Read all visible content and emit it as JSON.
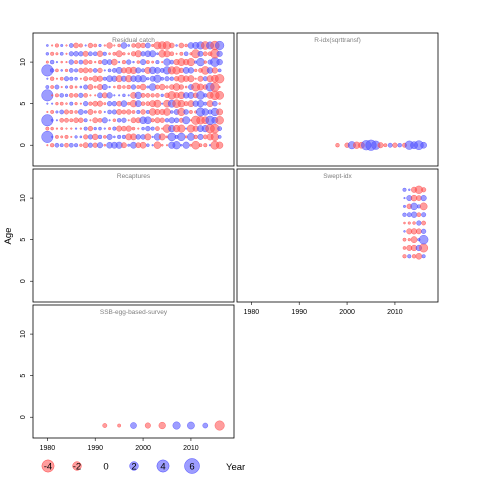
{
  "chart_data": {
    "type": "scatter",
    "xlabel": "Year",
    "ylabel": "Age",
    "x_ticks": [
      1980,
      1990,
      2000,
      2010
    ],
    "y_ticks": [
      0,
      5,
      10
    ],
    "xlim": [
      1977,
      2019
    ],
    "ylim": [
      -2.5,
      13.5
    ],
    "colors": {
      "positive": "#4d4dff",
      "negative": "#ff4d4d"
    },
    "legend": {
      "position": "bottom",
      "values": [
        -4,
        -2,
        0,
        2,
        4,
        6
      ]
    },
    "panels": [
      {
        "name": "Residual catch",
        "x_range": [
          1980,
          2016
        ],
        "ages": [
          0,
          1,
          2,
          3,
          4,
          5,
          6,
          7,
          8,
          9,
          10,
          11,
          12
        ],
        "dense": true
      },
      {
        "name": "R-idx(sqrttransf)",
        "points": [
          [
            1998,
            0,
            -0.4
          ],
          [
            2000,
            0,
            -0.6
          ],
          [
            2001,
            0,
            1.5
          ],
          [
            2002,
            0,
            -1.2
          ],
          [
            2003,
            0,
            -1.0
          ],
          [
            2004,
            0,
            2.5
          ],
          [
            2005,
            0,
            3.0
          ],
          [
            2006,
            0,
            2.0
          ],
          [
            2007,
            0,
            -0.8
          ],
          [
            2008,
            0,
            -0.3
          ],
          [
            2009,
            0,
            0.5
          ],
          [
            2010,
            0,
            -0.6
          ],
          [
            2011,
            0,
            0.4
          ],
          [
            2012,
            0,
            -0.5
          ],
          [
            2013,
            0,
            2.0
          ],
          [
            2014,
            0,
            1.4
          ],
          [
            2015,
            0,
            2.2
          ],
          [
            2016,
            0,
            1.0
          ]
        ]
      },
      {
        "name": "Recaptures",
        "points": []
      },
      {
        "name": "Swept-idx",
        "x_range": [
          2012,
          2016
        ],
        "ages": [
          3,
          4,
          5,
          6,
          7,
          8,
          9,
          10,
          11
        ],
        "dense": true
      },
      {
        "name": "SSB-egg-based-survey",
        "points": [
          [
            1992,
            -1,
            -0.5
          ],
          [
            1995,
            -1,
            -0.3
          ],
          [
            1998,
            -1,
            1.0
          ],
          [
            2001,
            -1,
            -0.8
          ],
          [
            2004,
            -1,
            -1.2
          ],
          [
            2007,
            -1,
            1.5
          ],
          [
            2010,
            -1,
            1.4
          ],
          [
            2013,
            -1,
            0.7
          ],
          [
            2016,
            -1,
            -2.4
          ]
        ]
      }
    ]
  }
}
